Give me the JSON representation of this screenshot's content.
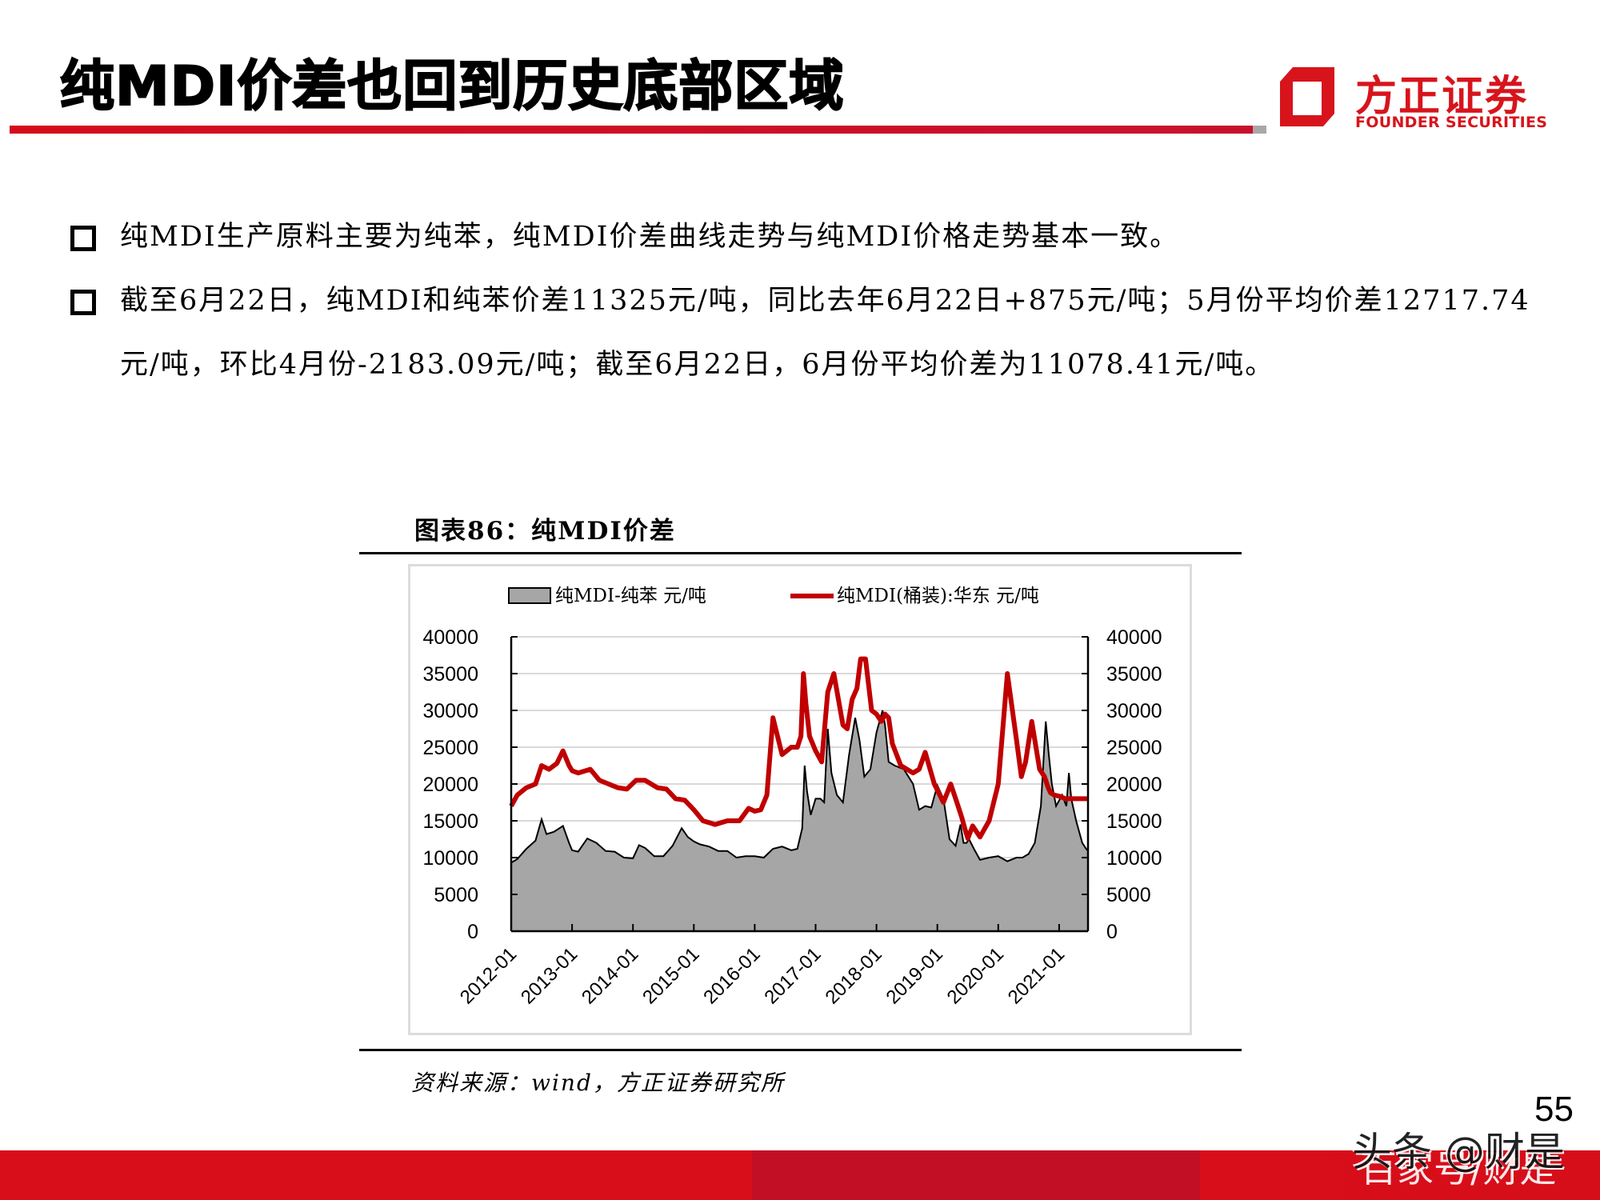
{
  "slide": {
    "title": "纯MDI价差也回到历史底部区域",
    "page_number": "55"
  },
  "logo": {
    "cn": "方正证券",
    "en": "FOUNDER SECURITIES",
    "color": "#d7141c"
  },
  "bullets": [
    {
      "text": "纯MDI生产原料主要为纯苯，纯MDI价差曲线走势与纯MDI价格走势基本一致。"
    },
    {
      "text": "截至6月22日，纯MDI和纯苯价差11325元/吨，同比去年6月22日+875元/吨；5月份平均价差12717.74元/吨，环比4月份-2183.09元/吨；截至6月22日，6月份平均价差为11078.41元/吨。"
    }
  ],
  "figure": {
    "caption": "图表86：纯MDI价差",
    "source": "资料来源：wind，方正证券研究所"
  },
  "watermark": {
    "line1": "头条 @财是",
    "line2": "百家号/财是"
  },
  "chart_data": {
    "type": "area+line",
    "title": "纯MDI价差",
    "legend": [
      {
        "name": "纯MDI-纯苯  元/吨",
        "kind": "area",
        "color": "#a6a6a6",
        "edge": "#000000"
      },
      {
        "name": "纯MDI(桶装):华东  元/吨",
        "kind": "line",
        "color": "#c00000"
      }
    ],
    "legend_position": "top",
    "x_ticks": [
      "2012-01",
      "2013-01",
      "2014-01",
      "2015-01",
      "2016-01",
      "2017-01",
      "2018-01",
      "2019-01",
      "2020-01",
      "2021-01"
    ],
    "x_range": [
      "2012-01",
      "2021-06"
    ],
    "y_left": {
      "min": 0,
      "max": 40000,
      "ticks": [
        0,
        5000,
        10000,
        15000,
        20000,
        25000,
        30000,
        35000,
        40000
      ]
    },
    "y_right": {
      "min": 0,
      "max": 40000,
      "ticks": [
        0,
        5000,
        10000,
        15000,
        20000,
        25000,
        30000,
        35000,
        40000
      ]
    },
    "grid": "horizontal",
    "series": [
      {
        "name": "纯MDI-纯苯 元/吨",
        "type": "area",
        "t": [
          0,
          0.1,
          0.25,
          0.4,
          0.5,
          0.58,
          0.7,
          0.85,
          0.95,
          1.0,
          1.1,
          1.25,
          1.4,
          1.55,
          1.7,
          1.85,
          2.0,
          2.1,
          2.2,
          2.35,
          2.5,
          2.65,
          2.8,
          2.9,
          3.0,
          3.1,
          3.25,
          3.4,
          3.55,
          3.7,
          3.85,
          4.0,
          4.15,
          4.3,
          4.45,
          4.6,
          4.7,
          4.78,
          4.82,
          4.86,
          4.92,
          5.0,
          5.08,
          5.14,
          5.2,
          5.26,
          5.35,
          5.45,
          5.55,
          5.65,
          5.72,
          5.8,
          5.9,
          6.0,
          6.1,
          6.14,
          6.2,
          6.3,
          6.45,
          6.6,
          6.7,
          6.8,
          6.9,
          7.0,
          7.1,
          7.2,
          7.3,
          7.38,
          7.43,
          7.48,
          7.52,
          7.6,
          7.7,
          7.85,
          8.0,
          8.15,
          8.3,
          8.4,
          8.5,
          8.6,
          8.7,
          8.78,
          8.83,
          8.88,
          8.95,
          9.05,
          9.12,
          9.16,
          9.2,
          9.28,
          9.38,
          9.46
        ],
        "values": [
          9300,
          9800,
          11200,
          12300,
          15200,
          13200,
          13500,
          14300,
          12000,
          11000,
          10800,
          12600,
          12000,
          10900,
          10800,
          10000,
          9900,
          11700,
          11300,
          10200,
          10200,
          11600,
          14000,
          12800,
          12200,
          11800,
          11500,
          10900,
          10900,
          10000,
          10200,
          10200,
          10000,
          11200,
          11500,
          11000,
          11200,
          14000,
          22500,
          19000,
          15800,
          18000,
          18000,
          17500,
          27500,
          21500,
          18500,
          17500,
          24000,
          29000,
          26000,
          21000,
          22000,
          27000,
          30000,
          28000,
          23000,
          22500,
          22000,
          20000,
          16500,
          17000,
          16800,
          19800,
          18000,
          12500,
          11600,
          14500,
          12000,
          12000,
          12500,
          11200,
          9700,
          10000,
          10200,
          9500,
          10000,
          10000,
          10500,
          12000,
          17000,
          28500,
          24000,
          20000,
          17000,
          18500,
          17000,
          21500,
          18000,
          15000,
          12000,
          11000
        ]
      },
      {
        "name": "纯MDI(桶装):华东 元/吨",
        "type": "line",
        "t": [
          0,
          0.1,
          0.25,
          0.4,
          0.5,
          0.62,
          0.75,
          0.85,
          0.95,
          1.0,
          1.1,
          1.3,
          1.45,
          1.6,
          1.75,
          1.9,
          2.05,
          2.2,
          2.4,
          2.55,
          2.7,
          2.85,
          3.0,
          3.15,
          3.35,
          3.55,
          3.75,
          3.9,
          4.0,
          4.1,
          4.2,
          4.3,
          4.45,
          4.6,
          4.7,
          4.76,
          4.8,
          4.84,
          4.9,
          5.0,
          5.1,
          5.2,
          5.3,
          5.45,
          5.52,
          5.6,
          5.68,
          5.74,
          5.82,
          5.92,
          6.0,
          6.08,
          6.14,
          6.2,
          6.26,
          6.4,
          6.5,
          6.6,
          6.7,
          6.8,
          6.95,
          7.1,
          7.22,
          7.32,
          7.4,
          7.45,
          7.5,
          7.58,
          7.7,
          7.85,
          8.0,
          8.15,
          8.3,
          8.38,
          8.45,
          8.55,
          8.68,
          8.76,
          8.82,
          8.86,
          8.92,
          9.02,
          9.1,
          9.16,
          9.2,
          9.26,
          9.34,
          9.42,
          9.47
        ],
        "values": [
          17000,
          18500,
          19500,
          20000,
          22500,
          22000,
          22800,
          24500,
          22500,
          21800,
          21500,
          22000,
          20500,
          20000,
          19500,
          19300,
          20500,
          20500,
          19500,
          19300,
          18000,
          17800,
          16500,
          15000,
          14500,
          15000,
          15000,
          16700,
          16300,
          16500,
          18500,
          29000,
          24000,
          25000,
          25000,
          26500,
          35000,
          31000,
          26500,
          24500,
          23000,
          32500,
          35000,
          28000,
          27500,
          31500,
          33000,
          37000,
          37000,
          30000,
          29500,
          28500,
          29500,
          29000,
          25500,
          22500,
          22000,
          21500,
          22000,
          24300,
          20000,
          17500,
          20000,
          17500,
          15500,
          14000,
          12600,
          14300,
          12800,
          15000,
          20000,
          35000,
          26000,
          21000,
          23000,
          28500,
          22000,
          21000,
          19500,
          18800,
          18500,
          18300,
          18000,
          18000,
          18000,
          18000,
          18000,
          18000,
          18000
        ],
        "color": "#c00000"
      }
    ]
  }
}
